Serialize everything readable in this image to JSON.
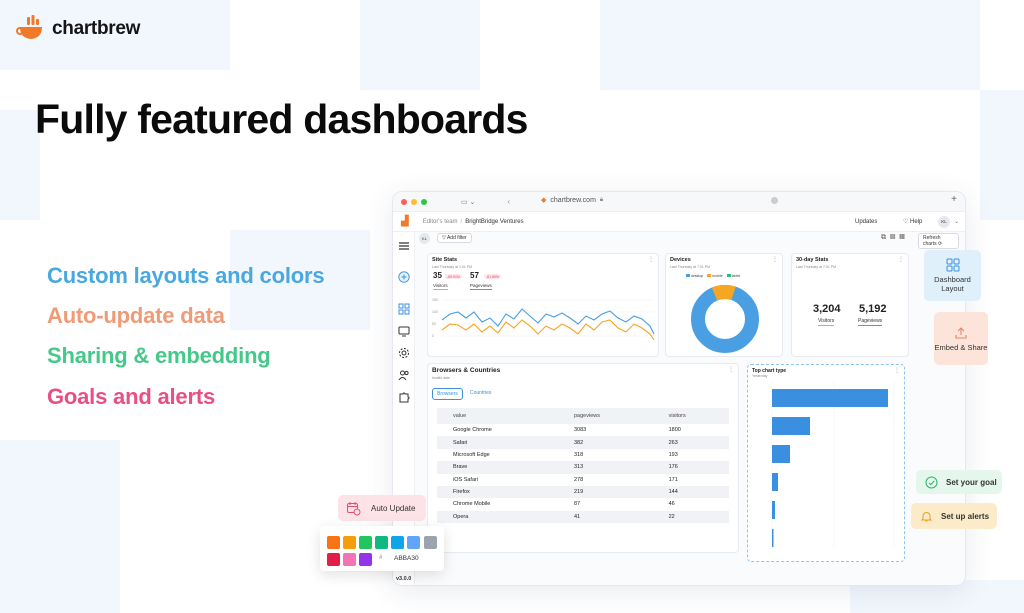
{
  "brand": {
    "name": "chartbrew"
  },
  "headline": "Fully featured dashboards",
  "features": [
    {
      "label": "Custom layouts and colors",
      "color": "#4aa8e0"
    },
    {
      "label": "Auto-update data",
      "color": "#ef9b77"
    },
    {
      "label": "Sharing & embedding",
      "color": "#45c98a"
    },
    {
      "label": "Goals and alerts",
      "color": "#ea4f83"
    }
  ],
  "browser": {
    "url": "chartbrew.com",
    "breadcrumb": {
      "team": "Editor's team",
      "project": "BrightBridge Ventures"
    },
    "updates_label": "Updates",
    "help_label": "Help",
    "avatar_initials": "KL",
    "filter_avatar": "KL",
    "add_filter_label": "Add filter",
    "refresh_label": "Refresh charts"
  },
  "site_stats": {
    "title": "Site Stats",
    "subtitle": "Last Thursday at 1:01 PM",
    "stats": [
      {
        "value": "35",
        "change": "-60.91%",
        "label": "Visitors"
      },
      {
        "value": "57",
        "change": "-61.89%",
        "label": "Pageviews"
      }
    ]
  },
  "devices": {
    "title": "Devices",
    "subtitle": "Last Thursday at 7:01 PM",
    "legend": [
      "desktop",
      "mobile",
      "tablet"
    ]
  },
  "thirty_day": {
    "title": "30-day Stats",
    "subtitle": "Last Thursday at 7:01 PM",
    "stats": [
      {
        "value": "3,204",
        "label": "Visitors"
      },
      {
        "value": "5,192",
        "label": "Pageviews"
      }
    ]
  },
  "browsers_countries": {
    "title": "Browsers & Countries",
    "subtitle": "Invalid date",
    "tabs": [
      "Browsers",
      "Countries"
    ],
    "columns": [
      "value",
      "pageviews",
      "visitors"
    ],
    "rows": [
      [
        "Google Chrome",
        "3083",
        "1800"
      ],
      [
        "Safari",
        "382",
        "263"
      ],
      [
        "Microsoft Edge",
        "318",
        "193"
      ],
      [
        "Brave",
        "313",
        "176"
      ],
      [
        "iOS Safari",
        "278",
        "171"
      ],
      [
        "Firefox",
        "219",
        "144"
      ],
      [
        "Chrome Mobile",
        "87",
        "46"
      ],
      [
        "Opera",
        "41",
        "22"
      ]
    ]
  },
  "top_chart_type": {
    "title": "Top chart type",
    "subtitle": "Yesterday"
  },
  "floating": {
    "dashboard_layout": "Dashboard Layout",
    "embed_share": "Embed & Share",
    "set_goal": "Set your goal",
    "set_alerts": "Set up alerts",
    "auto_update": "Auto Update",
    "hex_value": "ABBA30",
    "version": "v3.0.0"
  },
  "palette_colors": [
    "#f97316",
    "#f59e0b",
    "#22c55e",
    "#10b981",
    "#0ea5e9",
    "#60a5fa",
    "#9ca3af",
    "#e11d48",
    "#f472b6",
    "#9333ea"
  ],
  "colors": {
    "orange": "#f07a2a",
    "blue": "#4a9fe3",
    "series_orange": "#f5a623"
  }
}
